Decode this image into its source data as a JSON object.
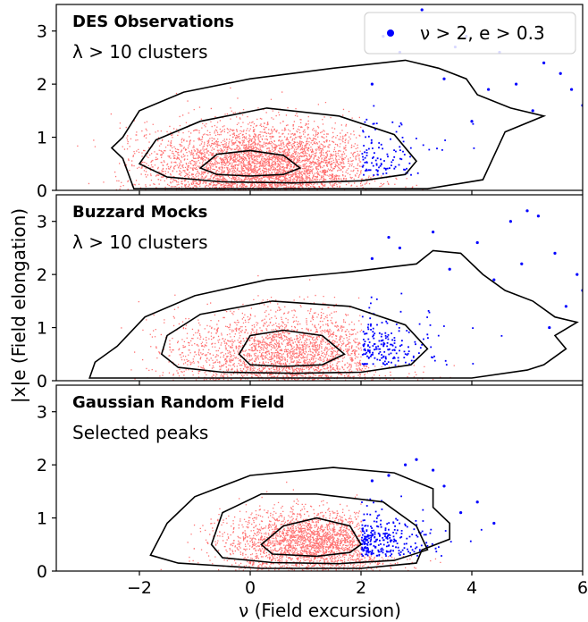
{
  "chart_data": {
    "type": "scatter",
    "xlabel": "ν (Field excursion)",
    "ylabel": "|x|e (Field elongation)",
    "xlim": [
      -3.5,
      6
    ],
    "ylim": [
      0,
      3.5
    ],
    "xticks": [
      -2,
      0,
      2,
      4,
      6
    ],
    "yticks": [
      0,
      1,
      2,
      3
    ],
    "grid": false,
    "legend": {
      "placement": "top-right",
      "label": "ν > 2, e > 0.3"
    },
    "colors": {
      "points": "#ff0000",
      "selected": "#0000ff",
      "contours": "#000000"
    },
    "panels": [
      {
        "title": "DES Observations",
        "subtitle": "λ > 10 clusters",
        "density": {
          "center_x": 0.2,
          "center_y": 0.5,
          "spread_x": 1.0,
          "spread_y": 0.38
        },
        "contours": [
          [
            [
              -0.9,
              0.42
            ],
            [
              -0.6,
              0.3
            ],
            [
              0.0,
              0.27
            ],
            [
              0.6,
              0.3
            ],
            [
              0.9,
              0.42
            ],
            [
              0.6,
              0.66
            ],
            [
              0.0,
              0.75
            ],
            [
              -0.6,
              0.68
            ]
          ],
          [
            [
              -2.0,
              0.5
            ],
            [
              -1.5,
              0.25
            ],
            [
              -0.5,
              0.16
            ],
            [
              0.8,
              0.14
            ],
            [
              2.0,
              0.18
            ],
            [
              2.8,
              0.3
            ],
            [
              3.0,
              0.55
            ],
            [
              2.6,
              1.05
            ],
            [
              1.6,
              1.4
            ],
            [
              0.3,
              1.55
            ],
            [
              -0.9,
              1.3
            ],
            [
              -1.7,
              0.95
            ]
          ],
          [
            [
              -2.1,
              0.03
            ],
            [
              -2.3,
              0.6
            ],
            [
              -2.5,
              0.8
            ],
            [
              -2.3,
              1.0
            ],
            [
              -2.0,
              1.5
            ],
            [
              -1.2,
              1.85
            ],
            [
              0.0,
              2.1
            ],
            [
              1.5,
              2.3
            ],
            [
              2.8,
              2.45
            ],
            [
              3.4,
              2.3
            ],
            [
              3.9,
              2.1
            ],
            [
              4.1,
              1.8
            ],
            [
              4.7,
              1.55
            ],
            [
              5.3,
              1.4
            ],
            [
              4.6,
              1.1
            ],
            [
              4.2,
              0.2
            ],
            [
              3.2,
              0.03
            ]
          ]
        ],
        "selected_points": [
          [
            3.1,
            3.4
          ],
          [
            3.9,
            2.9
          ],
          [
            5.3,
            2.4
          ],
          [
            4.5,
            2.6
          ],
          [
            2.4,
            2.9
          ],
          [
            5.8,
            1.9
          ],
          [
            4.8,
            2.0
          ],
          [
            4.3,
            1.9
          ],
          [
            6.0,
            1.6
          ],
          [
            2.7,
            2.6
          ],
          [
            3.5,
            2.1
          ],
          [
            5.1,
            1.5
          ],
          [
            3.7,
            2.7
          ],
          [
            4.0,
            1.3
          ],
          [
            2.2,
            2.0
          ],
          [
            5.6,
            2.2
          ]
        ]
      },
      {
        "title": "Buzzard Mocks",
        "subtitle": "λ > 10 clusters",
        "density": {
          "center_x": 0.7,
          "center_y": 0.55,
          "spread_x": 1.0,
          "spread_y": 0.38
        },
        "contours": [
          [
            [
              -0.2,
              0.5
            ],
            [
              0.0,
              0.3
            ],
            [
              0.6,
              0.27
            ],
            [
              1.3,
              0.3
            ],
            [
              1.7,
              0.5
            ],
            [
              1.3,
              0.85
            ],
            [
              0.6,
              0.95
            ],
            [
              0.0,
              0.85
            ]
          ],
          [
            [
              -1.6,
              0.5
            ],
            [
              -1.3,
              0.25
            ],
            [
              -0.5,
              0.16
            ],
            [
              0.8,
              0.14
            ],
            [
              2.0,
              0.16
            ],
            [
              2.9,
              0.3
            ],
            [
              3.2,
              0.6
            ],
            [
              2.8,
              1.05
            ],
            [
              1.8,
              1.4
            ],
            [
              0.4,
              1.5
            ],
            [
              -0.9,
              1.25
            ],
            [
              -1.5,
              0.85
            ]
          ],
          [
            [
              -2.9,
              0.05
            ],
            [
              -2.8,
              0.35
            ],
            [
              -2.4,
              0.65
            ],
            [
              -1.9,
              1.2
            ],
            [
              -1.0,
              1.6
            ],
            [
              0.3,
              1.9
            ],
            [
              1.8,
              2.05
            ],
            [
              3.0,
              2.2
            ],
            [
              3.3,
              2.45
            ],
            [
              3.8,
              2.4
            ],
            [
              4.2,
              2.0
            ],
            [
              4.6,
              1.7
            ],
            [
              5.1,
              1.5
            ],
            [
              5.5,
              1.2
            ],
            [
              5.9,
              1.1
            ],
            [
              5.5,
              0.85
            ],
            [
              5.7,
              0.6
            ],
            [
              5.3,
              0.3
            ],
            [
              5.0,
              0.2
            ],
            [
              4.0,
              0.05
            ]
          ]
        ],
        "selected_points": [
          [
            5.0,
            3.2
          ],
          [
            5.2,
            3.1
          ],
          [
            4.7,
            3.0
          ],
          [
            2.5,
            2.7
          ],
          [
            3.3,
            2.8
          ],
          [
            5.5,
            2.4
          ],
          [
            4.1,
            2.6
          ],
          [
            5.9,
            2.0
          ],
          [
            6.0,
            1.7
          ],
          [
            2.7,
            2.5
          ],
          [
            4.9,
            2.2
          ],
          [
            3.6,
            2.1
          ],
          [
            5.7,
            1.4
          ],
          [
            4.4,
            1.9
          ],
          [
            2.2,
            2.3
          ],
          [
            5.4,
            1.0
          ]
        ]
      },
      {
        "title": "Gaussian Random Field",
        "subtitle": "Selected peaks",
        "density": {
          "center_x": 1.1,
          "center_y": 0.55,
          "spread_x": 0.8,
          "spread_y": 0.3
        },
        "contours": [
          [
            [
              0.2,
              0.5
            ],
            [
              0.4,
              0.32
            ],
            [
              1.2,
              0.28
            ],
            [
              1.8,
              0.35
            ],
            [
              2.0,
              0.5
            ],
            [
              1.8,
              0.85
            ],
            [
              1.2,
              1.0
            ],
            [
              0.6,
              0.85
            ]
          ],
          [
            [
              -0.7,
              0.5
            ],
            [
              -0.5,
              0.25
            ],
            [
              0.4,
              0.16
            ],
            [
              1.6,
              0.14
            ],
            [
              2.6,
              0.2
            ],
            [
              3.2,
              0.4
            ],
            [
              3.0,
              0.85
            ],
            [
              2.4,
              1.3
            ],
            [
              1.2,
              1.45
            ],
            [
              0.2,
              1.45
            ],
            [
              -0.5,
              1.1
            ]
          ],
          [
            [
              -1.8,
              0.3
            ],
            [
              -1.5,
              0.9
            ],
            [
              -1.0,
              1.4
            ],
            [
              0.0,
              1.8
            ],
            [
              1.5,
              1.95
            ],
            [
              2.6,
              1.85
            ],
            [
              3.3,
              1.55
            ],
            [
              3.3,
              1.2
            ],
            [
              3.6,
              0.9
            ],
            [
              3.6,
              0.6
            ],
            [
              3.1,
              0.4
            ],
            [
              3.0,
              0.15
            ],
            [
              2.0,
              0.05
            ],
            [
              0.2,
              0.05
            ],
            [
              -1.3,
              0.15
            ]
          ]
        ],
        "selected_points": [
          [
            2.8,
            2.0
          ],
          [
            3.0,
            2.1
          ],
          [
            3.3,
            1.9
          ],
          [
            2.5,
            1.8
          ],
          [
            3.5,
            1.6
          ],
          [
            4.1,
            1.3
          ],
          [
            3.8,
            1.1
          ],
          [
            4.4,
            0.9
          ],
          [
            2.2,
            1.7
          ]
        ]
      }
    ]
  }
}
